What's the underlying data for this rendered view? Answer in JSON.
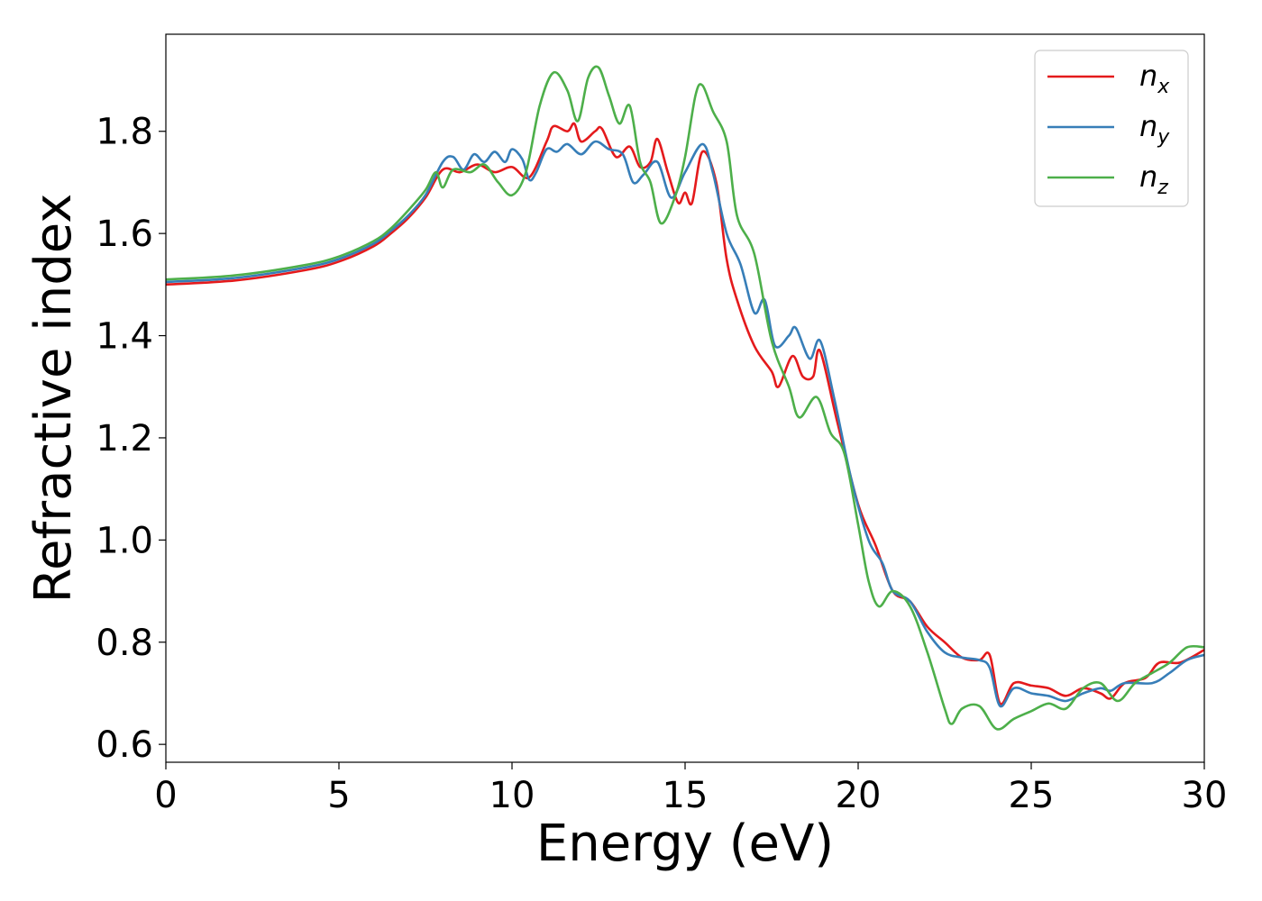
{
  "chart_data": {
    "type": "line",
    "xlabel": "Energy (eV)",
    "ylabel": "Refractive index",
    "xlim": [
      0,
      30
    ],
    "ylim": [
      0.565,
      1.99
    ],
    "xticks": [
      0,
      5,
      10,
      15,
      20,
      25,
      30
    ],
    "xtick_labels": [
      "0",
      "5",
      "10",
      "15",
      "20",
      "25",
      "30"
    ],
    "yticks": [
      0.6,
      0.8,
      1.0,
      1.2,
      1.4,
      1.6,
      1.8
    ],
    "ytick_labels": [
      "0.6",
      "0.8",
      "1.0",
      "1.2",
      "1.4",
      "1.6",
      "1.8"
    ],
    "grid": false,
    "legend_position": "top-right",
    "series": [
      {
        "name": "n",
        "subscript": "x",
        "color": "#e41a1c",
        "points": [
          [
            0,
            1.5
          ],
          [
            2,
            1.508
          ],
          [
            4,
            1.528
          ],
          [
            5,
            1.545
          ],
          [
            6,
            1.575
          ],
          [
            6.5,
            1.6
          ],
          [
            7,
            1.63
          ],
          [
            7.5,
            1.67
          ],
          [
            8,
            1.725
          ],
          [
            8.5,
            1.72
          ],
          [
            9,
            1.735
          ],
          [
            9.5,
            1.72
          ],
          [
            10,
            1.73
          ],
          [
            10.5,
            1.71
          ],
          [
            11,
            1.78
          ],
          [
            11.2,
            1.81
          ],
          [
            11.6,
            1.8
          ],
          [
            11.8,
            1.815
          ],
          [
            12,
            1.78
          ],
          [
            12.4,
            1.8
          ],
          [
            12.6,
            1.805
          ],
          [
            13,
            1.75
          ],
          [
            13.4,
            1.77
          ],
          [
            13.7,
            1.73
          ],
          [
            14.0,
            1.74
          ],
          [
            14.2,
            1.785
          ],
          [
            14.5,
            1.72
          ],
          [
            14.8,
            1.66
          ],
          [
            15.0,
            1.68
          ],
          [
            15.2,
            1.66
          ],
          [
            15.5,
            1.76
          ],
          [
            15.9,
            1.7
          ],
          [
            16.2,
            1.55
          ],
          [
            16.5,
            1.47
          ],
          [
            17,
            1.38
          ],
          [
            17.5,
            1.33
          ],
          [
            17.7,
            1.3
          ],
          [
            18.1,
            1.36
          ],
          [
            18.4,
            1.32
          ],
          [
            18.7,
            1.32
          ],
          [
            18.9,
            1.37
          ],
          [
            19.4,
            1.23
          ],
          [
            20,
            1.07
          ],
          [
            20.5,
            0.99
          ],
          [
            21,
            0.9
          ],
          [
            21.5,
            0.88
          ],
          [
            22,
            0.83
          ],
          [
            22.5,
            0.8
          ],
          [
            23,
            0.77
          ],
          [
            23.5,
            0.765
          ],
          [
            23.8,
            0.775
          ],
          [
            24.1,
            0.68
          ],
          [
            24.5,
            0.72
          ],
          [
            25,
            0.715
          ],
          [
            25.5,
            0.71
          ],
          [
            26,
            0.695
          ],
          [
            26.5,
            0.71
          ],
          [
            27,
            0.7
          ],
          [
            27.3,
            0.69
          ],
          [
            27.7,
            0.72
          ],
          [
            28.3,
            0.73
          ],
          [
            28.7,
            0.76
          ],
          [
            29.3,
            0.76
          ],
          [
            30,
            0.785
          ]
        ]
      },
      {
        "name": "n",
        "subscript": "y",
        "color": "#377eb8",
        "points": [
          [
            0,
            1.505
          ],
          [
            2,
            1.513
          ],
          [
            4,
            1.533
          ],
          [
            5,
            1.55
          ],
          [
            6,
            1.58
          ],
          [
            6.5,
            1.605
          ],
          [
            7,
            1.635
          ],
          [
            7.5,
            1.675
          ],
          [
            8,
            1.74
          ],
          [
            8.3,
            1.75
          ],
          [
            8.6,
            1.725
          ],
          [
            8.9,
            1.755
          ],
          [
            9.2,
            1.74
          ],
          [
            9.5,
            1.76
          ],
          [
            9.8,
            1.74
          ],
          [
            10,
            1.765
          ],
          [
            10.3,
            1.745
          ],
          [
            10.5,
            1.705
          ],
          [
            10.7,
            1.72
          ],
          [
            11,
            1.765
          ],
          [
            11.3,
            1.76
          ],
          [
            11.6,
            1.775
          ],
          [
            12,
            1.755
          ],
          [
            12.4,
            1.78
          ],
          [
            12.8,
            1.765
          ],
          [
            13.2,
            1.755
          ],
          [
            13.5,
            1.7
          ],
          [
            13.8,
            1.715
          ],
          [
            14.2,
            1.74
          ],
          [
            14.6,
            1.67
          ],
          [
            15.0,
            1.72
          ],
          [
            15.5,
            1.775
          ],
          [
            15.8,
            1.72
          ],
          [
            16.2,
            1.6
          ],
          [
            16.6,
            1.54
          ],
          [
            17.0,
            1.445
          ],
          [
            17.3,
            1.47
          ],
          [
            17.6,
            1.38
          ],
          [
            18.0,
            1.4
          ],
          [
            18.2,
            1.415
          ],
          [
            18.6,
            1.355
          ],
          [
            18.9,
            1.39
          ],
          [
            19.3,
            1.28
          ],
          [
            19.8,
            1.12
          ],
          [
            20.3,
            1.0
          ],
          [
            20.7,
            0.955
          ],
          [
            21.0,
            0.9
          ],
          [
            21.5,
            0.88
          ],
          [
            22,
            0.82
          ],
          [
            22.5,
            0.78
          ],
          [
            23,
            0.77
          ],
          [
            23.5,
            0.765
          ],
          [
            23.8,
            0.75
          ],
          [
            24.1,
            0.675
          ],
          [
            24.5,
            0.71
          ],
          [
            25,
            0.7
          ],
          [
            25.5,
            0.695
          ],
          [
            26,
            0.685
          ],
          [
            26.5,
            0.7
          ],
          [
            27,
            0.71
          ],
          [
            27.3,
            0.705
          ],
          [
            27.7,
            0.72
          ],
          [
            28.5,
            0.72
          ],
          [
            29,
            0.74
          ],
          [
            29.5,
            0.765
          ],
          [
            30,
            0.775
          ]
        ]
      },
      {
        "name": "n",
        "subscript": "z",
        "color": "#4daf4a",
        "points": [
          [
            0,
            1.51
          ],
          [
            2,
            1.518
          ],
          [
            4,
            1.538
          ],
          [
            5,
            1.555
          ],
          [
            6,
            1.585
          ],
          [
            6.5,
            1.61
          ],
          [
            7,
            1.645
          ],
          [
            7.5,
            1.685
          ],
          [
            7.8,
            1.72
          ],
          [
            8.0,
            1.69
          ],
          [
            8.3,
            1.725
          ],
          [
            8.8,
            1.72
          ],
          [
            9.2,
            1.735
          ],
          [
            9.6,
            1.7
          ],
          [
            10,
            1.675
          ],
          [
            10.4,
            1.72
          ],
          [
            10.8,
            1.85
          ],
          [
            11.2,
            1.915
          ],
          [
            11.6,
            1.88
          ],
          [
            11.9,
            1.82
          ],
          [
            12.2,
            1.905
          ],
          [
            12.5,
            1.925
          ],
          [
            12.8,
            1.87
          ],
          [
            13.1,
            1.815
          ],
          [
            13.4,
            1.85
          ],
          [
            13.7,
            1.74
          ],
          [
            14.0,
            1.7
          ],
          [
            14.3,
            1.62
          ],
          [
            14.7,
            1.67
          ],
          [
            15.0,
            1.75
          ],
          [
            15.3,
            1.87
          ],
          [
            15.5,
            1.89
          ],
          [
            15.8,
            1.84
          ],
          [
            16.2,
            1.78
          ],
          [
            16.5,
            1.635
          ],
          [
            17.0,
            1.56
          ],
          [
            17.5,
            1.39
          ],
          [
            18.0,
            1.3
          ],
          [
            18.3,
            1.24
          ],
          [
            18.8,
            1.28
          ],
          [
            19.2,
            1.21
          ],
          [
            19.6,
            1.17
          ],
          [
            20.0,
            1.03
          ],
          [
            20.3,
            0.92
          ],
          [
            20.6,
            0.87
          ],
          [
            21.0,
            0.9
          ],
          [
            21.5,
            0.87
          ],
          [
            22.0,
            0.78
          ],
          [
            22.5,
            0.67
          ],
          [
            22.7,
            0.64
          ],
          [
            23.0,
            0.67
          ],
          [
            23.5,
            0.675
          ],
          [
            24.0,
            0.63
          ],
          [
            24.5,
            0.65
          ],
          [
            25.0,
            0.665
          ],
          [
            25.5,
            0.68
          ],
          [
            26.0,
            0.67
          ],
          [
            26.5,
            0.71
          ],
          [
            27.0,
            0.72
          ],
          [
            27.5,
            0.685
          ],
          [
            28.0,
            0.72
          ],
          [
            28.5,
            0.74
          ],
          [
            29.0,
            0.76
          ],
          [
            29.5,
            0.79
          ],
          [
            30,
            0.79
          ]
        ]
      }
    ]
  }
}
